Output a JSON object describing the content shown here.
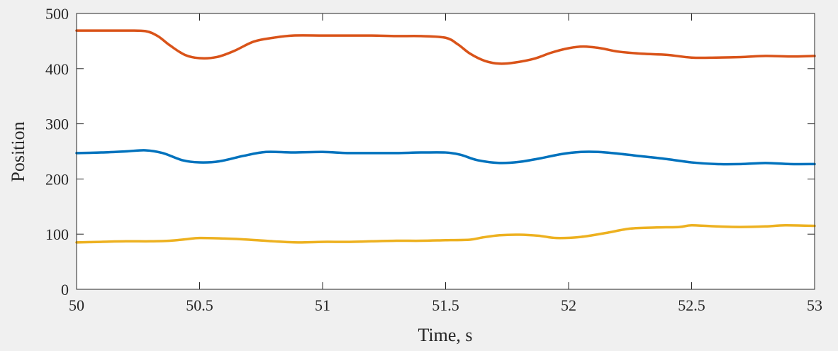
{
  "chart_data": {
    "type": "line",
    "title": "",
    "xlabel": "Time, s",
    "ylabel": "Position",
    "xlim": [
      50,
      53
    ],
    "ylim": [
      0,
      500
    ],
    "xticks": [
      50,
      50.5,
      51,
      51.5,
      52,
      52.5,
      53
    ],
    "xtick_labels": [
      "50",
      "50.5",
      "51",
      "51.5",
      "52",
      "52.5",
      "53"
    ],
    "yticks": [
      0,
      100,
      200,
      300,
      400,
      500
    ],
    "ytick_labels": [
      "0",
      "100",
      "200",
      "300",
      "400",
      "500"
    ],
    "grid": false,
    "legend": "none",
    "background": "#f0f0f0",
    "plot_background": "#ffffff",
    "series": [
      {
        "color": "#0072bd",
        "x": [
          50,
          50.1,
          50.2,
          50.28,
          50.35,
          50.43,
          50.5,
          50.58,
          50.68,
          50.77,
          50.88,
          51,
          51.1,
          51.2,
          51.3,
          51.4,
          51.5,
          51.56,
          51.63,
          51.72,
          51.8,
          51.88,
          51.97,
          52.05,
          52.12,
          52.2,
          52.3,
          52.4,
          52.5,
          52.6,
          52.7,
          52.8,
          52.9,
          53
        ],
        "y": [
          247,
          248,
          250,
          252,
          247,
          234,
          230,
          232,
          242,
          249,
          248,
          249,
          247,
          247,
          247,
          248,
          248,
          244,
          234,
          229,
          231,
          237,
          245,
          249,
          249,
          246,
          241,
          236,
          230,
          227,
          227,
          229,
          227,
          227
        ]
      },
      {
        "color": "#d95319",
        "x": [
          50,
          50.1,
          50.2,
          50.28,
          50.33,
          50.38,
          50.44,
          50.5,
          50.57,
          50.64,
          50.72,
          50.8,
          50.88,
          51,
          51.1,
          51.2,
          51.3,
          51.4,
          51.5,
          51.55,
          51.6,
          51.66,
          51.72,
          51.78,
          51.86,
          51.93,
          52,
          52.06,
          52.13,
          52.2,
          52.3,
          52.4,
          52.5,
          52.6,
          52.7,
          52.8,
          52.9,
          53
        ],
        "y": [
          469,
          469,
          469,
          468,
          459,
          442,
          425,
          419,
          421,
          432,
          449,
          456,
          460,
          460,
          460,
          460,
          459,
          459,
          456,
          444,
          427,
          414,
          409,
          411,
          418,
          429,
          437,
          440,
          437,
          431,
          427,
          425,
          420,
          420,
          421,
          423,
          422,
          423
        ]
      },
      {
        "color": "#edb120",
        "x": [
          50,
          50.1,
          50.2,
          50.3,
          50.38,
          50.45,
          50.5,
          50.6,
          50.7,
          50.8,
          50.9,
          51,
          51.1,
          51.2,
          51.3,
          51.4,
          51.5,
          51.6,
          51.65,
          51.72,
          51.8,
          51.88,
          51.95,
          52.05,
          52.15,
          52.25,
          52.35,
          52.45,
          52.5,
          52.6,
          52.7,
          52.8,
          52.88,
          53
        ],
        "y": [
          85,
          86,
          87,
          87,
          88,
          91,
          93,
          92,
          90,
          87,
          85,
          86,
          86,
          87,
          88,
          88,
          89,
          90,
          94,
          98,
          99,
          97,
          93,
          95,
          102,
          110,
          112,
          113,
          116,
          114,
          113,
          114,
          116,
          115
        ]
      }
    ]
  }
}
